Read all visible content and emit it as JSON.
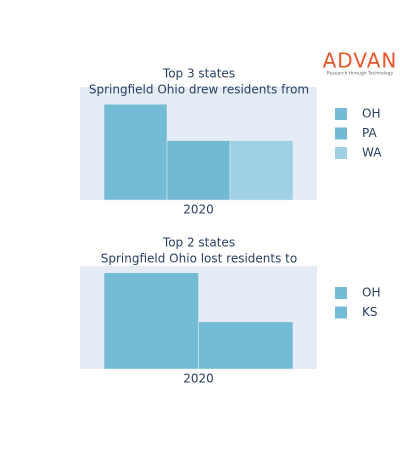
{
  "logo": {
    "text": "ADVAN",
    "tagline": "Research through Technology"
  },
  "chart_data": [
    {
      "type": "bar",
      "title": "Top 3 states",
      "subtitle": "Springfield Ohio drew residents from",
      "categories": [
        "2020"
      ],
      "series": [
        {
          "name": "OH",
          "color": "#74bcd6",
          "values": [
            100
          ]
        },
        {
          "name": "PA",
          "color": "#72b9d4",
          "values": [
            62
          ]
        },
        {
          "name": "WA",
          "color": "#9fd0e3",
          "values": [
            62
          ]
        }
      ],
      "ylim": [
        0,
        118
      ]
    },
    {
      "type": "bar",
      "title": "Top 2 states",
      "subtitle": "Springfield Ohio lost residents to",
      "categories": [
        "2020"
      ],
      "series": [
        {
          "name": "OH",
          "color": "#74bcd6",
          "values": [
            100
          ]
        },
        {
          "name": "KS",
          "color": "#74bcd6",
          "values": [
            49
          ]
        }
      ],
      "ylim": [
        0,
        107
      ]
    }
  ]
}
